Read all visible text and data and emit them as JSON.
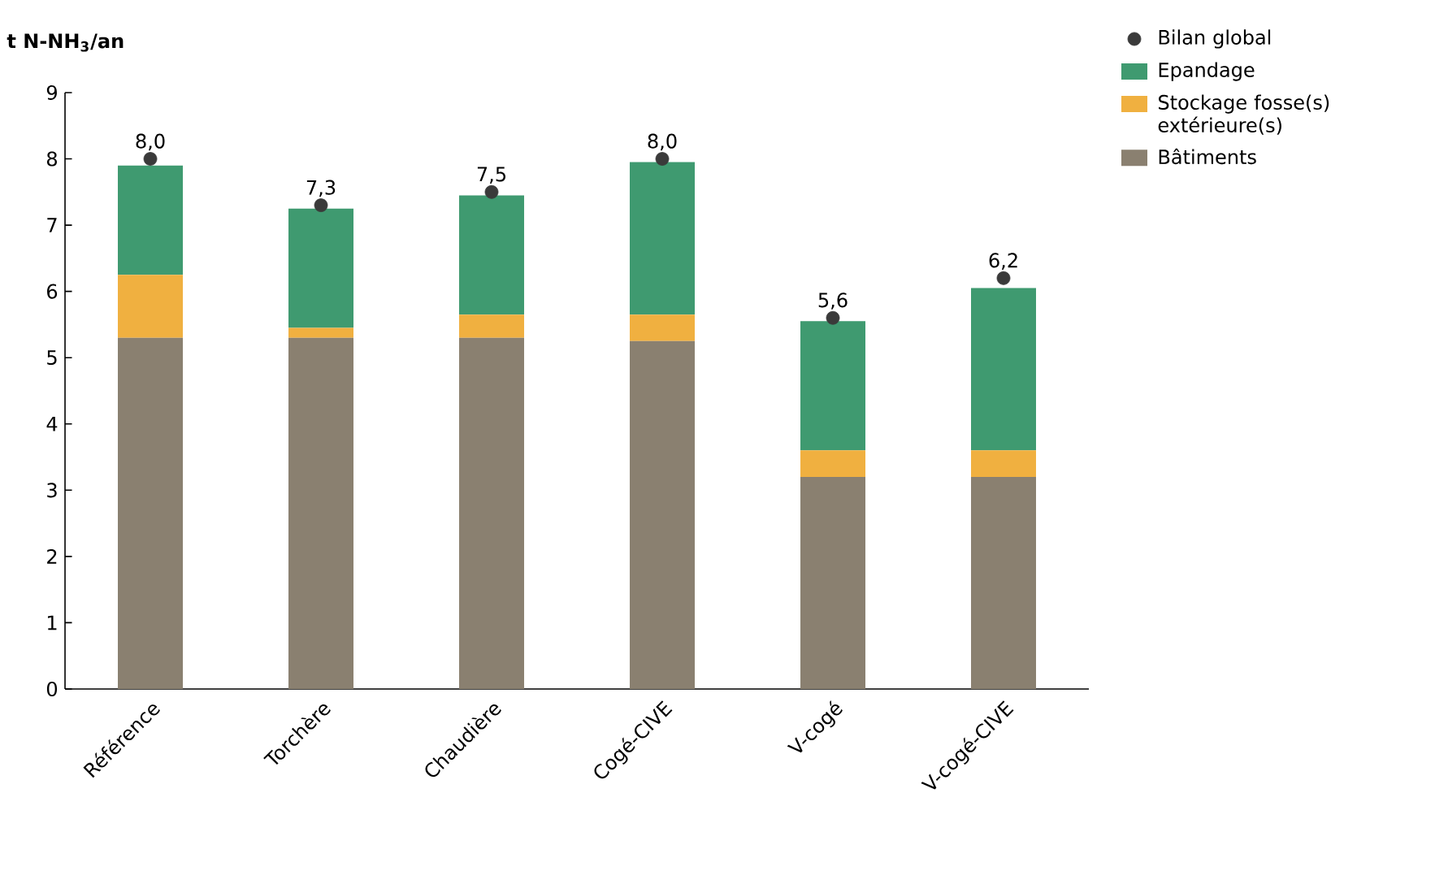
{
  "chart_data": {
    "type": "bar",
    "stacked": true,
    "ylabel": "t N-NH$_{3}$/an",
    "categories": [
      "Référence",
      "Torchère",
      "Chaudière",
      "Cogé-CIVE",
      "V-cogé",
      "V-cogé-CIVE"
    ],
    "series": [
      {
        "name": "Bâtiments",
        "color": "#8a8070",
        "values": [
          5.3,
          5.3,
          5.3,
          5.25,
          3.2,
          3.2
        ]
      },
      {
        "name": "Stockage fosse(s) extérieure(s)",
        "color": "#f0b040",
        "values": [
          0.95,
          0.15,
          0.35,
          0.4,
          0.4,
          0.4
        ]
      },
      {
        "name": "Epandage",
        "color": "#3f9a70",
        "values": [
          1.65,
          1.8,
          1.8,
          2.3,
          1.95,
          2.45
        ]
      },
      {
        "name": "Bilan global",
        "type": "scatter",
        "color": "#3a3a3a",
        "x": [
          "Référence",
          "Torchère",
          "Chaudière",
          "Cogé-CIVE",
          "V-cogé",
          "V-cogé-CIVE"
        ],
        "values": [
          8.0,
          7.3,
          7.5,
          8.0,
          5.6,
          6.2
        ],
        "value_labels": [
          "8,0",
          "7,3",
          "7,5",
          "8,0",
          "5,6",
          "6,2"
        ]
      }
    ],
    "ylim": [
      0,
      9
    ],
    "yticks": [
      0,
      1,
      2,
      3,
      4,
      5,
      6,
      7,
      8,
      9
    ],
    "legend": "right",
    "grid": false,
    "marker": "circle"
  }
}
